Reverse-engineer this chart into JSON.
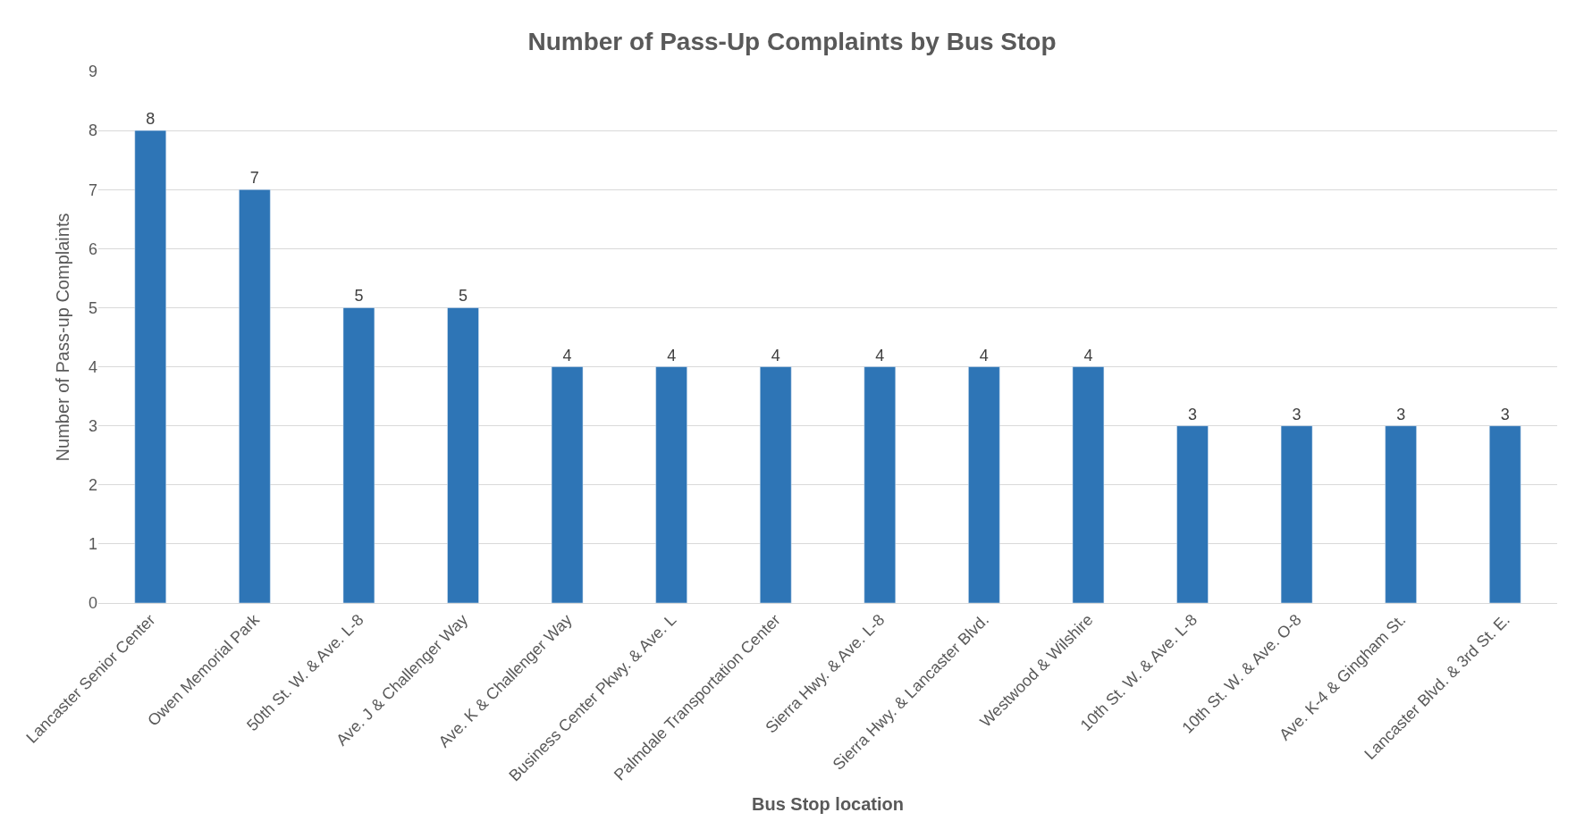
{
  "chart_data": {
    "type": "bar",
    "title": "Number of Pass-Up Complaints by Bus Stop",
    "xlabel": "Bus Stop location",
    "ylabel": "Number of Pass-up Complaints",
    "categories": [
      "Lancaster Senior Center",
      "Owen Memorial Park",
      "50th St. W. & Ave. L-8",
      "Ave. J & Challenger Way",
      "Ave. K & Challenger Way",
      "Business Center Pkwy. & Ave. L",
      "Palmdale Transportation Center",
      "Sierra Hwy. & Ave. L-8",
      "Sierra Hwy. & Lancaster Blvd.",
      "Westwood & Wilshire",
      "10th St. W. & Ave. L-8",
      "10th St. W. & Ave. O-8",
      "Ave. K-4 & Gingham St.",
      "Lancaster Blvd. & 3rd St. E."
    ],
    "values": [
      8,
      7,
      5,
      5,
      4,
      4,
      4,
      4,
      4,
      4,
      3,
      3,
      3,
      3
    ],
    "color": "#2e75b6",
    "ylim": [
      0,
      9
    ],
    "yticks": [
      0,
      1,
      2,
      3,
      4,
      5,
      6,
      7,
      8,
      9
    ],
    "grid": "y",
    "data_labels": true
  }
}
